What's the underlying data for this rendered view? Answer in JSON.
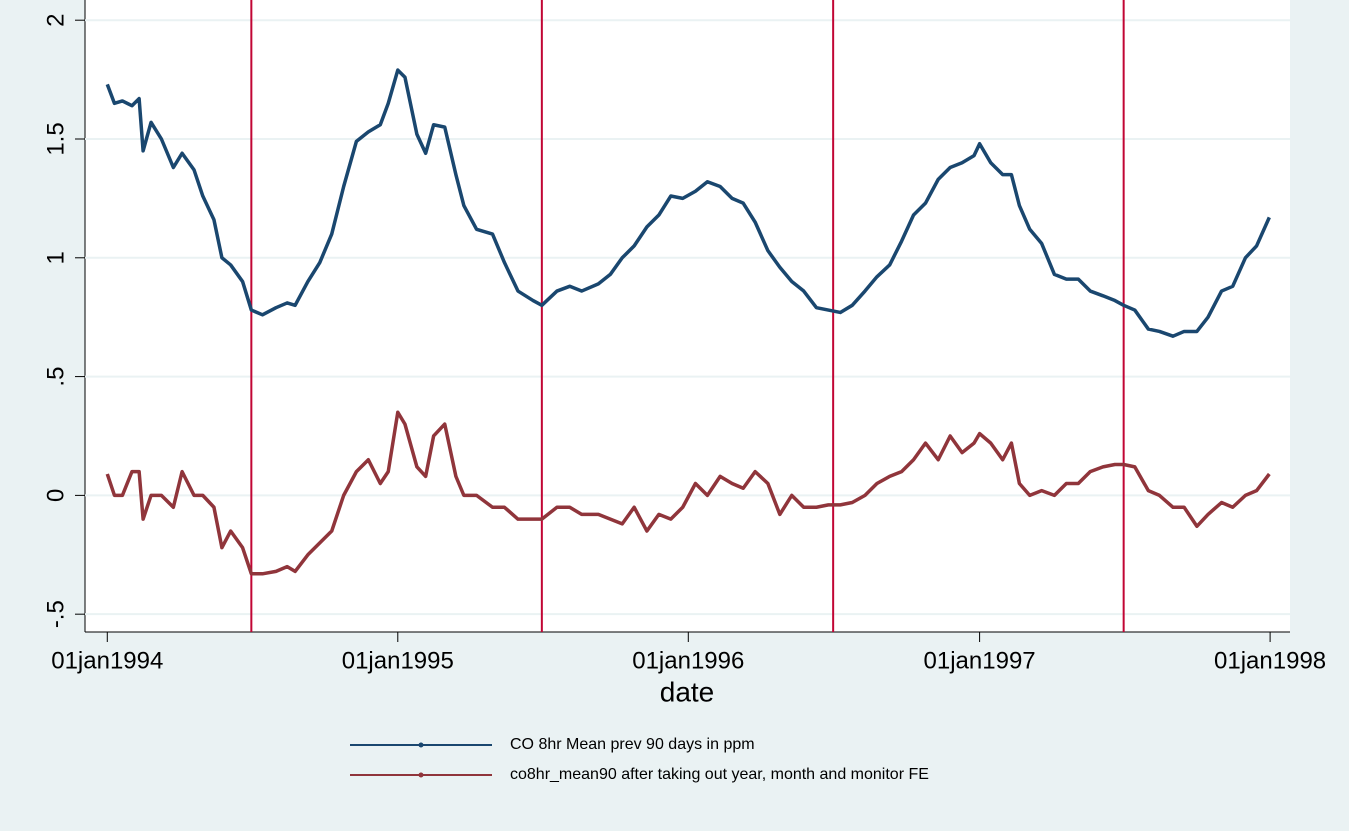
{
  "chart_data": {
    "type": "line",
    "x_label": "date",
    "x": [
      "1994-01-01",
      "1994-01-10",
      "1994-01-20",
      "1994-02-01",
      "1994-02-10",
      "1994-02-15",
      "1994-02-25",
      "1994-03-10",
      "1994-03-25",
      "1994-04-05",
      "1994-04-20",
      "1994-05-01",
      "1994-05-15",
      "1994-05-25",
      "1994-06-05",
      "1994-06-20",
      "1994-07-01",
      "1994-07-15",
      "1994-08-01",
      "1994-08-15",
      "1994-08-25",
      "1994-09-10",
      "1994-09-25",
      "1994-10-10",
      "1994-10-25",
      "1994-11-10",
      "1994-11-25",
      "1994-12-10",
      "1994-12-20",
      "1995-01-01",
      "1995-01-10",
      "1995-01-25",
      "1995-02-05",
      "1995-02-15",
      "1995-03-01",
      "1995-03-15",
      "1995-03-25",
      "1995-04-10",
      "1995-04-30",
      "1995-05-15",
      "1995-06-01",
      "1995-06-20",
      "1995-07-01",
      "1995-07-20",
      "1995-08-05",
      "1995-08-20",
      "1995-09-10",
      "1995-09-25",
      "1995-10-10",
      "1995-10-25",
      "1995-11-10",
      "1995-11-25",
      "1995-12-10",
      "1995-12-25",
      "1996-01-10",
      "1996-01-25",
      "1996-02-10",
      "1996-02-25",
      "1996-03-10",
      "1996-03-25",
      "1996-04-10",
      "1996-04-25",
      "1996-05-10",
      "1996-05-25",
      "1996-06-10",
      "1996-06-25",
      "1996-07-10",
      "1996-07-25",
      "1996-08-10",
      "1996-08-25",
      "1996-09-10",
      "1996-09-25",
      "1996-10-10",
      "1996-10-25",
      "1996-11-10",
      "1996-11-25",
      "1996-12-10",
      "1996-12-25",
      "1997-01-01",
      "1997-01-15",
      "1997-01-30",
      "1997-02-10",
      "1997-02-20",
      "1997-03-05",
      "1997-03-20",
      "1997-04-05",
      "1997-04-20",
      "1997-05-05",
      "1997-05-20",
      "1997-06-05",
      "1997-06-20",
      "1997-07-01",
      "1997-07-15",
      "1997-08-01",
      "1997-08-15",
      "1997-09-01",
      "1997-09-15",
      "1997-10-01",
      "1997-10-15",
      "1997-11-01",
      "1997-11-15",
      "1997-12-01",
      "1997-12-15",
      "1997-12-31"
    ],
    "series": [
      {
        "name": "CO 8hr Mean prev 90 days in ppm",
        "color": "#1a476f",
        "values": [
          1.73,
          1.65,
          1.66,
          1.64,
          1.67,
          1.45,
          1.57,
          1.5,
          1.38,
          1.44,
          1.37,
          1.26,
          1.16,
          1.0,
          0.97,
          0.9,
          0.78,
          0.76,
          0.79,
          0.81,
          0.8,
          0.9,
          0.98,
          1.1,
          1.3,
          1.49,
          1.53,
          1.56,
          1.65,
          1.79,
          1.76,
          1.52,
          1.44,
          1.56,
          1.55,
          1.35,
          1.22,
          1.12,
          1.1,
          0.98,
          0.86,
          0.82,
          0.8,
          0.86,
          0.88,
          0.86,
          0.89,
          0.93,
          1.0,
          1.05,
          1.13,
          1.18,
          1.26,
          1.25,
          1.28,
          1.32,
          1.3,
          1.25,
          1.23,
          1.15,
          1.03,
          0.96,
          0.9,
          0.86,
          0.79,
          0.78,
          0.77,
          0.8,
          0.86,
          0.92,
          0.97,
          1.07,
          1.18,
          1.23,
          1.33,
          1.38,
          1.4,
          1.43,
          1.48,
          1.4,
          1.35,
          1.35,
          1.22,
          1.12,
          1.06,
          0.93,
          0.91,
          0.91,
          0.86,
          0.84,
          0.82,
          0.8,
          0.78,
          0.7,
          0.69,
          0.67,
          0.69,
          0.69,
          0.75,
          0.86,
          0.88,
          1.0,
          1.05,
          1.17
        ]
      },
      {
        "name": "co8hr_mean90 after taking out year, month and monitor FE",
        "color": "#90353b",
        "values": [
          0.09,
          0.0,
          0.0,
          0.1,
          0.1,
          -0.1,
          0.0,
          0.0,
          -0.05,
          0.1,
          0.0,
          0.0,
          -0.05,
          -0.22,
          -0.15,
          -0.22,
          -0.33,
          -0.33,
          -0.32,
          -0.3,
          -0.32,
          -0.25,
          -0.2,
          -0.15,
          0.0,
          0.1,
          0.15,
          0.05,
          0.1,
          0.35,
          0.3,
          0.12,
          0.08,
          0.25,
          0.3,
          0.08,
          0.0,
          0.0,
          -0.05,
          -0.05,
          -0.1,
          -0.1,
          -0.1,
          -0.05,
          -0.05,
          -0.08,
          -0.08,
          -0.1,
          -0.12,
          -0.05,
          -0.15,
          -0.08,
          -0.1,
          -0.05,
          0.05,
          0.0,
          0.08,
          0.05,
          0.03,
          0.1,
          0.05,
          -0.08,
          0.0,
          -0.05,
          -0.05,
          -0.04,
          -0.04,
          -0.03,
          0.0,
          0.05,
          0.08,
          0.1,
          0.15,
          0.22,
          0.15,
          0.25,
          0.18,
          0.22,
          0.26,
          0.22,
          0.15,
          0.22,
          0.05,
          0.0,
          0.02,
          0.0,
          0.05,
          0.05,
          0.1,
          0.12,
          0.13,
          0.13,
          0.12,
          0.02,
          0.0,
          -0.05,
          -0.05,
          -0.13,
          -0.08,
          -0.03,
          -0.05,
          0.0,
          0.02,
          0.09
        ]
      }
    ],
    "vlines": {
      "color": "#c10534",
      "x": [
        "1994-07-01",
        "1995-07-01",
        "1996-07-01",
        "1997-07-01"
      ]
    },
    "xlim": [
      "1993-12-04",
      "1998-01-26"
    ],
    "xticks": [
      {
        "value": "1994-01-01",
        "label": "01jan1994"
      },
      {
        "value": "1995-01-01",
        "label": "01jan1995"
      },
      {
        "value": "1996-01-01",
        "label": "01jan1996"
      },
      {
        "value": "1997-01-01",
        "label": "01jan1997"
      },
      {
        "value": "1998-01-01",
        "label": "01jan1998"
      }
    ],
    "ylim": [
      -0.575,
      2.085
    ],
    "yticks": [
      {
        "value": -0.5,
        "label": "-.5"
      },
      0,
      {
        "value": 0.5,
        "label": ".5"
      },
      1,
      1.5,
      2
    ],
    "grid": true,
    "legend": "bottom"
  }
}
